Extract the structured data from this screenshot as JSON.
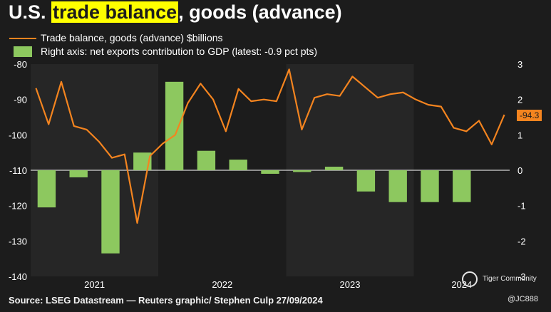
{
  "title": {
    "prefix": "U.S.",
    "highlight": "trade balance",
    "suffix": ", goods (advance)"
  },
  "legend": {
    "line_label": "Trade balance, goods (advance) $billions",
    "bar_label": "Right axis: net exports contribution to GDP (latest: -0.9 pct pts)"
  },
  "latest_label": "-94.3",
  "footer": "Source: LSEG Datastream — Reuters graphic/ Stephen Culp  27/09/2024",
  "watermark": {
    "brand": "Tiger Community",
    "handle": "@JC888"
  },
  "colors": {
    "line": "#f4841f",
    "bar": "#8dc85f",
    "background": "#1c1c1c",
    "band": "#262626"
  },
  "chart_data": {
    "type": "bar+line",
    "title": "U.S. trade balance, goods (advance)",
    "left_axis": {
      "label": "Trade balance, goods (advance) $billions",
      "ylim": [
        -140,
        -80
      ],
      "ticks": [
        -80,
        -90,
        -100,
        -110,
        -120,
        -130,
        -140
      ]
    },
    "right_axis": {
      "label": "net exports contribution to GDP (pct pts)",
      "ylim": [
        -3,
        3
      ],
      "ticks": [
        3,
        2,
        1,
        0,
        -1,
        -2,
        -3
      ]
    },
    "x_labels": [
      "2021",
      "2022",
      "2023",
      "2024"
    ],
    "line_series": {
      "name": "Trade balance, goods (advance) $billions",
      "start": "2021-01",
      "values": [
        -86.8,
        -97.0,
        -85.0,
        -97.5,
        -98.5,
        -102.0,
        -106.5,
        -105.5,
        -124.9,
        -106.0,
        -102.5,
        -100.0,
        -91.0,
        -85.5,
        -90.0,
        -99.0,
        -87.0,
        -90.5,
        -90.0,
        -90.5,
        -81.5,
        -98.5,
        -89.5,
        -88.5,
        -89.0,
        -83.5,
        -86.5,
        -89.5,
        -88.5,
        -88.0,
        -90.0,
        -91.5,
        -92.0,
        -98.0,
        -99.0,
        -96.0,
        -102.7,
        -94.3
      ]
    },
    "bar_series": {
      "name": "Right axis: net exports contribution to GDP (latest: -0.9 pct pts)",
      "quarters": [
        "2021Q1",
        "2021Q2",
        "2021Q3",
        "2021Q4",
        "2022Q1",
        "2022Q2",
        "2022Q3",
        "2022Q4",
        "2023Q1",
        "2023Q2",
        "2023Q3",
        "2023Q4",
        "2024Q1",
        "2024Q2"
      ],
      "values": [
        -1.05,
        -0.2,
        -2.35,
        0.5,
        2.5,
        0.55,
        0.3,
        -0.1,
        -0.05,
        0.1,
        -0.6,
        -0.9,
        -0.9,
        -0.9
      ]
    }
  }
}
